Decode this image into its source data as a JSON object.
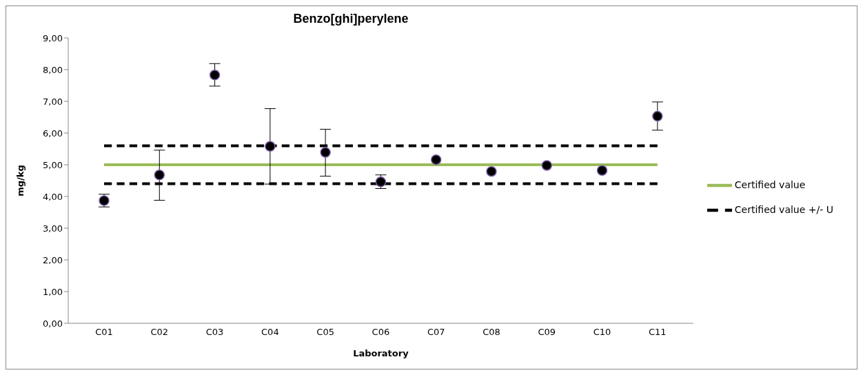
{
  "chart_data": {
    "type": "scatter",
    "title": "Benzo[ghi]perylene",
    "xlabel": "Laboratory",
    "ylabel": "mg/kg",
    "categories": [
      "C01",
      "C02",
      "C03",
      "C04",
      "C05",
      "C06",
      "C07",
      "C08",
      "C09",
      "C10",
      "C11"
    ],
    "series": [
      {
        "color": "#000000",
        "marker": "circle",
        "values": [
          3.87,
          4.68,
          7.83,
          5.58,
          5.39,
          4.46,
          5.16,
          4.79,
          4.98,
          4.82,
          6.53
        ],
        "errors": [
          [
            3.67,
            4.07
          ],
          [
            3.88,
            5.46
          ],
          [
            7.48,
            8.19
          ],
          [
            4.39,
            6.77
          ],
          [
            4.64,
            6.12
          ],
          [
            4.25,
            4.68
          ],
          null,
          null,
          null,
          null,
          [
            6.09,
            6.98
          ]
        ]
      },
      {
        "type": "line",
        "name": "Certified value",
        "color": "#9bbb59",
        "line_style": "solid",
        "marker": "none",
        "values": [
          5.0,
          5.0,
          5.0,
          5.0,
          5.0,
          5.0,
          5.0,
          5.0,
          5.0,
          5.0,
          5.0
        ]
      },
      {
        "type": "line",
        "name": "Certified value +/- U",
        "color": "#000000",
        "line_style": "dashed",
        "marker": "none",
        "values": [
          5.6,
          5.6,
          5.6,
          5.6,
          5.6,
          5.6,
          5.6,
          5.6,
          5.6,
          5.6,
          5.6
        ]
      },
      {
        "type": "line",
        "color": "#000000",
        "line_style": "dashed",
        "marker": "none",
        "values": [
          4.4,
          4.4,
          4.4,
          4.4,
          4.4,
          4.4,
          4.4,
          4.4,
          4.4,
          4.4,
          4.4
        ]
      }
    ],
    "ylim": [
      0,
      9
    ],
    "yticks": [
      {
        "value": 0,
        "label": "0,00"
      },
      {
        "value": 1,
        "label": "1,00"
      },
      {
        "value": 2,
        "label": "2,00"
      },
      {
        "value": 3,
        "label": "3,00"
      },
      {
        "value": 4,
        "label": "4,00"
      },
      {
        "value": 5,
        "label": "5,00"
      },
      {
        "value": 6,
        "label": "6,00"
      },
      {
        "value": 7,
        "label": "7,00"
      },
      {
        "value": 8,
        "label": "8,00"
      },
      {
        "value": 9,
        "label": "9,00"
      }
    ],
    "grid": false,
    "legend": "right"
  }
}
